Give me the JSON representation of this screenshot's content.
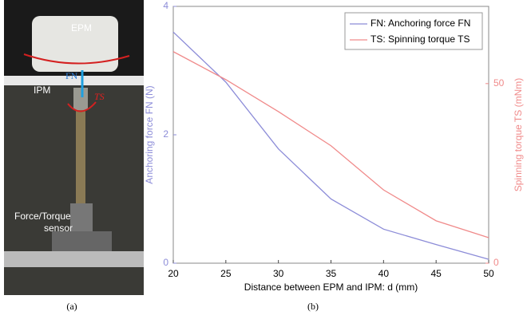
{
  "photo": {
    "labels": [
      "EPM",
      "FN",
      "IPM",
      "TS",
      "Force/Torque",
      "sensor"
    ],
    "caption": "(a)"
  },
  "chart_data": {
    "type": "line",
    "caption": "(b)",
    "x_label": "Distance between EPM and IPM: d (mm)",
    "y_label": "Anchoring force FN (N)",
    "y2_label": "Spinning torque TS (mNm)",
    "x": [
      20,
      25,
      30,
      35,
      40,
      45,
      50
    ],
    "xlim": [
      20,
      50
    ],
    "xticks": [
      20,
      25,
      30,
      35,
      40,
      45,
      50
    ],
    "ylim": [
      0,
      4
    ],
    "yticks": [
      0,
      2,
      4
    ],
    "y2lim": [
      0,
      71.5
    ],
    "y2ticks": [
      0,
      50
    ],
    "legend": "upper right",
    "series": [
      {
        "name": "FN: Anchoring force FN",
        "color": "#8c8cd8",
        "values": [
          3.6,
          2.82,
          1.78,
          1.0,
          0.53,
          0.29,
          0.06
        ]
      },
      {
        "name": "TS: Spinning torque TS",
        "color": "#f08a8a",
        "axis": "y2",
        "values": [
          58.9,
          51.1,
          42.2,
          32.7,
          20.4,
          11.8,
          7.1
        ]
      }
    ]
  }
}
